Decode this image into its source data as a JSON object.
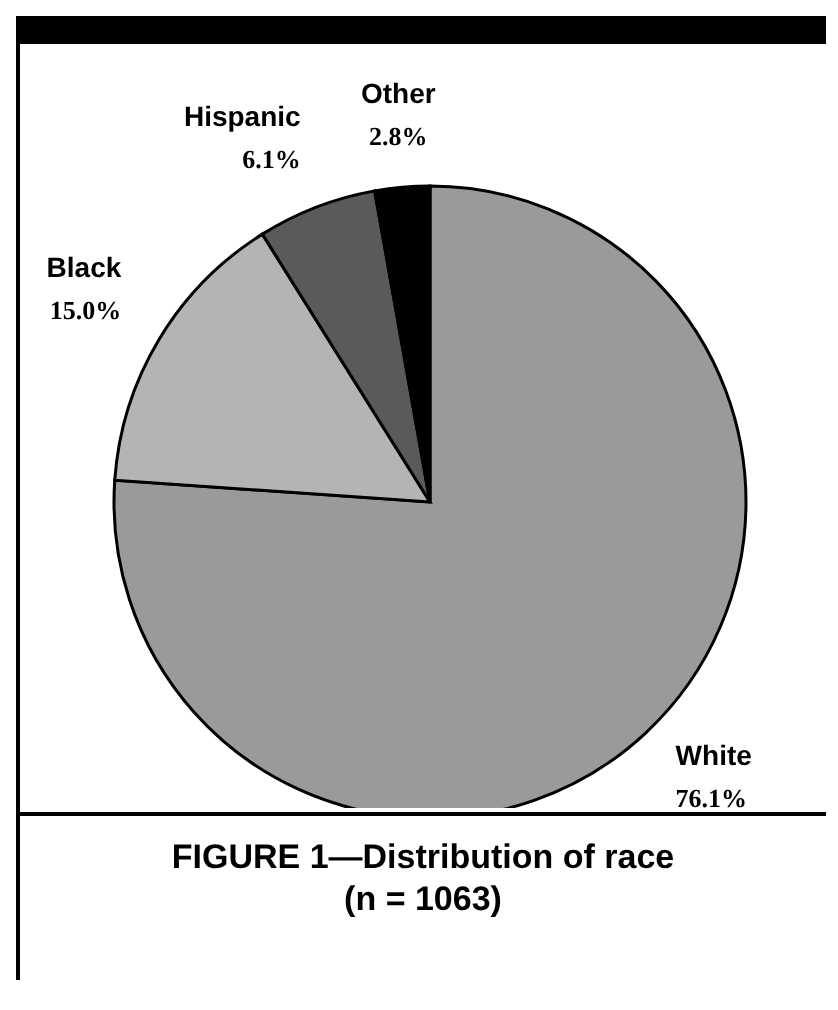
{
  "chart_data": {
    "type": "pie",
    "title": "FIGURE 1—Distribution of race\n(n = 1063)",
    "categories": [
      "White",
      "Black",
      "Hispanic",
      "Other"
    ],
    "values": [
      76.1,
      15.0,
      6.1,
      2.8
    ],
    "value_labels": [
      "76.1%",
      "15.0%",
      "6.1%",
      "2.8%"
    ],
    "colors": [
      "#9a9a9a",
      "#b4b4b4",
      "#5a5a5a",
      "#000000"
    ]
  }
}
